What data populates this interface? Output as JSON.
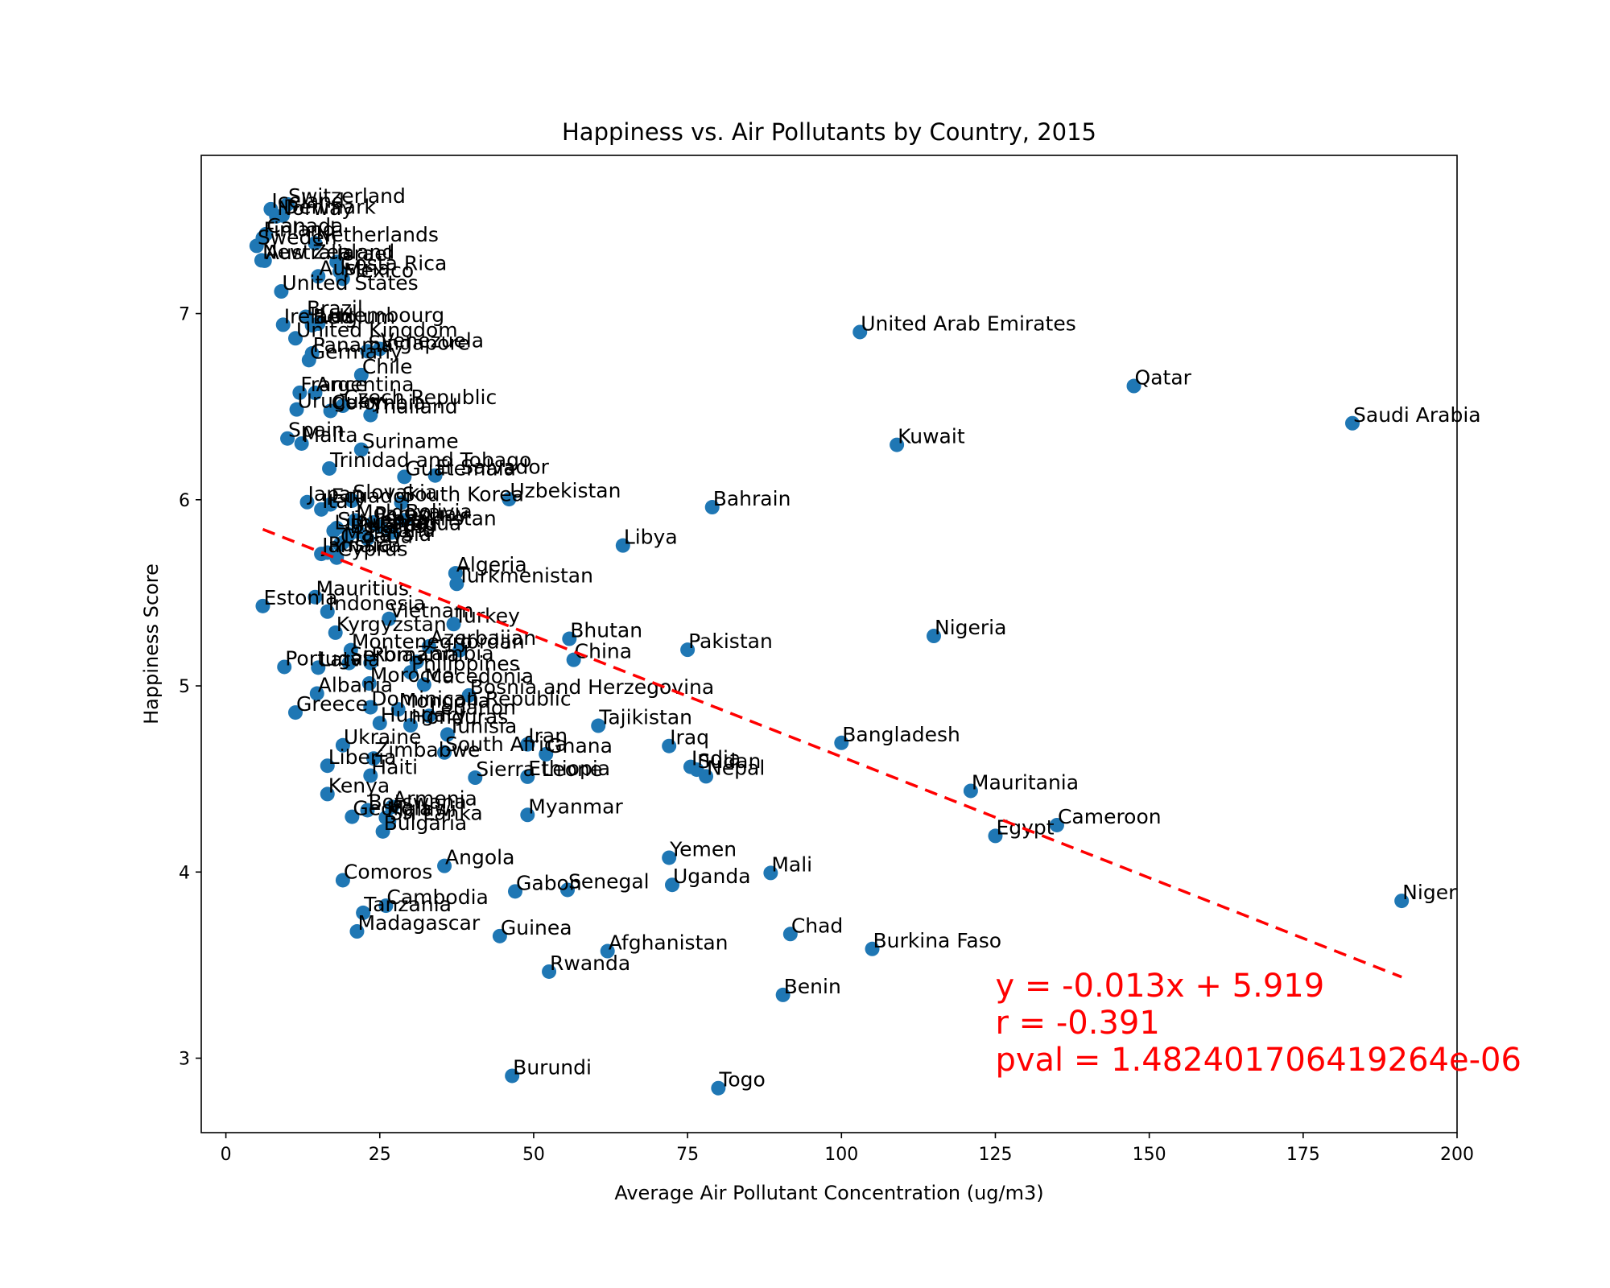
{
  "chart_data": {
    "type": "scatter",
    "title": "Happiness vs. Air Pollutants by Country, 2015",
    "xlabel": "Average Air Pollutant Concentration (ug/m3)",
    "ylabel": "Happiness Score",
    "xlim": [
      -4,
      200
    ],
    "ylim": [
      2.6,
      7.85
    ],
    "xticks": [
      "0",
      "25",
      "50",
      "75",
      "100",
      "125",
      "150",
      "175",
      "200"
    ],
    "yticks": [
      "3",
      "4",
      "5",
      "6",
      "7"
    ],
    "point_color": "#1f77b4",
    "line_color": "#ff0000",
    "regression": {
      "slope": -0.013,
      "intercept": 5.919,
      "x_range": [
        6,
        191
      ]
    },
    "annotation": [
      "y = -0.013x + 5.919",
      "r = -0.391",
      "pval = 1.482401706419264e-06"
    ],
    "points": [
      {
        "label": "Switzerland",
        "x": 10,
        "y": 7.587
      },
      {
        "label": "Iceland",
        "x": 7.3,
        "y": 7.561
      },
      {
        "label": "Denmark",
        "x": 9.2,
        "y": 7.527
      },
      {
        "label": "Norway",
        "x": 8.2,
        "y": 7.522
      },
      {
        "label": "Canada",
        "x": 6.5,
        "y": 7.427
      },
      {
        "label": "Finland",
        "x": 6,
        "y": 7.406
      },
      {
        "label": "Netherlands",
        "x": 14.5,
        "y": 7.378
      },
      {
        "label": "Sweden",
        "x": 5,
        "y": 7.364
      },
      {
        "label": "New Zealand",
        "x": 5.8,
        "y": 7.286
      },
      {
        "label": "Australia",
        "x": 6.3,
        "y": 7.284
      },
      {
        "label": "Israel",
        "x": 18,
        "y": 7.278
      },
      {
        "label": "Costa Rica",
        "x": 18.5,
        "y": 7.226
      },
      {
        "label": "Austria",
        "x": 15,
        "y": 7.2
      },
      {
        "label": "Mexico",
        "x": 19,
        "y": 7.187
      },
      {
        "label": "United States",
        "x": 9,
        "y": 7.119
      },
      {
        "label": "Brazil",
        "x": 13,
        "y": 6.983
      },
      {
        "label": "Luxembourg",
        "x": 15,
        "y": 6.946
      },
      {
        "label": "Ireland",
        "x": 9.3,
        "y": 6.94
      },
      {
        "label": "Belgium",
        "x": 14,
        "y": 6.937
      },
      {
        "label": "United Arab Emirates",
        "x": 103,
        "y": 6.901
      },
      {
        "label": "United Kingdom",
        "x": 11.3,
        "y": 6.867
      },
      {
        "label": "Venezuela",
        "x": 25,
        "y": 6.81
      },
      {
        "label": "Singapore",
        "x": 23,
        "y": 6.798
      },
      {
        "label": "Panama",
        "x": 14,
        "y": 6.786
      },
      {
        "label": "Germany",
        "x": 13.5,
        "y": 6.75
      },
      {
        "label": "Chile",
        "x": 22,
        "y": 6.67
      },
      {
        "label": "Qatar",
        "x": 147.5,
        "y": 6.611
      },
      {
        "label": "France",
        "x": 12,
        "y": 6.575
      },
      {
        "label": "Argentina",
        "x": 14.5,
        "y": 6.574
      },
      {
        "label": "Czech Republic",
        "x": 19,
        "y": 6.505
      },
      {
        "label": "Uruguay",
        "x": 11.5,
        "y": 6.485
      },
      {
        "label": "Colombia",
        "x": 17,
        "y": 6.477
      },
      {
        "label": "Thailand",
        "x": 23.5,
        "y": 6.455
      },
      {
        "label": "Saudi Arabia",
        "x": 183,
        "y": 6.411
      },
      {
        "label": "Spain",
        "x": 10,
        "y": 6.329
      },
      {
        "label": "Malta",
        "x": 12.3,
        "y": 6.302
      },
      {
        "label": "Kuwait",
        "x": 109,
        "y": 6.295
      },
      {
        "label": "Suriname",
        "x": 22,
        "y": 6.269
      },
      {
        "label": "Trinidad and Tobago",
        "x": 16.8,
        "y": 6.168
      },
      {
        "label": "El Salvador",
        "x": 34,
        "y": 6.13
      },
      {
        "label": "Guatemala",
        "x": 29,
        "y": 6.123
      },
      {
        "label": "Uzbekistan",
        "x": 46,
        "y": 6.003
      },
      {
        "label": "Slovakia",
        "x": 20.5,
        "y": 5.995
      },
      {
        "label": "Japan",
        "x": 13.2,
        "y": 5.987
      },
      {
        "label": "South Korea",
        "x": 28.5,
        "y": 5.984
      },
      {
        "label": "Ecuador",
        "x": 17,
        "y": 5.975
      },
      {
        "label": "Bahrain",
        "x": 79,
        "y": 5.96
      },
      {
        "label": "Italy",
        "x": 15.5,
        "y": 5.948
      },
      {
        "label": "Bolivia",
        "x": 29,
        "y": 5.89
      },
      {
        "label": "Moldova",
        "x": 21,
        "y": 5.889
      },
      {
        "label": "Paraguay",
        "x": 24,
        "y": 5.878
      },
      {
        "label": "Kazakhstan",
        "x": 25,
        "y": 5.855
      },
      {
        "label": "Slovenia",
        "x": 18,
        "y": 5.848
      },
      {
        "label": "Lithuania",
        "x": 17.5,
        "y": 5.833
      },
      {
        "label": "Nicaragua",
        "x": 21.5,
        "y": 5.828
      },
      {
        "label": "Peru",
        "x": 27,
        "y": 5.824
      },
      {
        "label": "Belarus",
        "x": 20,
        "y": 5.813
      },
      {
        "label": "Poland",
        "x": 23,
        "y": 5.791
      },
      {
        "label": "Malaysia",
        "x": 19,
        "y": 5.77
      },
      {
        "label": "Croatia",
        "x": 18.5,
        "y": 5.759
      },
      {
        "label": "Libya",
        "x": 64.5,
        "y": 5.754
      },
      {
        "label": "Russia",
        "x": 16.5,
        "y": 5.716
      },
      {
        "label": "Jamaica",
        "x": 15.5,
        "y": 5.709
      },
      {
        "label": "Cyprus",
        "x": 18,
        "y": 5.689
      },
      {
        "label": "Algeria",
        "x": 37.3,
        "y": 5.605
      },
      {
        "label": "Turkmenistan",
        "x": 37.5,
        "y": 5.548
      },
      {
        "label": "Mauritius",
        "x": 14.5,
        "y": 5.477
      },
      {
        "label": "Estonia",
        "x": 6,
        "y": 5.429
      },
      {
        "label": "Indonesia",
        "x": 16.5,
        "y": 5.399
      },
      {
        "label": "Vietnam",
        "x": 26.5,
        "y": 5.36
      },
      {
        "label": "Turkey",
        "x": 37,
        "y": 5.332
      },
      {
        "label": "Kyrgyzstan",
        "x": 17.8,
        "y": 5.286
      },
      {
        "label": "Nigeria",
        "x": 115,
        "y": 5.268
      },
      {
        "label": "Bhutan",
        "x": 55.8,
        "y": 5.253
      },
      {
        "label": "Azerbaijan",
        "x": 33,
        "y": 5.212
      },
      {
        "label": "Pakistan",
        "x": 75,
        "y": 5.194
      },
      {
        "label": "Jordan",
        "x": 38,
        "y": 5.192
      },
      {
        "label": "Montenegro",
        "x": 20.3,
        "y": 5.192
      },
      {
        "label": "China",
        "x": 56.5,
        "y": 5.14
      },
      {
        "label": "Zambia",
        "x": 31,
        "y": 5.129
      },
      {
        "label": "Romania",
        "x": 23.5,
        "y": 5.124
      },
      {
        "label": "Serbia",
        "x": 20,
        "y": 5.123
      },
      {
        "label": "Portugal",
        "x": 9.5,
        "y": 5.102
      },
      {
        "label": "Latvia",
        "x": 15,
        "y": 5.098
      },
      {
        "label": "Philippines",
        "x": 30,
        "y": 5.073
      },
      {
        "label": "Morocco",
        "x": 23.3,
        "y": 5.013
      },
      {
        "label": "Macedonia",
        "x": 32.2,
        "y": 5.007
      },
      {
        "label": "Albania",
        "x": 14.8,
        "y": 4.959
      },
      {
        "label": "Bosnia and Herzegovina",
        "x": 39.5,
        "y": 4.949
      },
      {
        "label": "Dominican Republic",
        "x": 23.5,
        "y": 4.885
      },
      {
        "label": "Mongolia",
        "x": 28,
        "y": 4.874
      },
      {
        "label": "Greece",
        "x": 11.3,
        "y": 4.857
      },
      {
        "label": "Lebanon",
        "x": 33,
        "y": 4.839
      },
      {
        "label": "Hungary",
        "x": 25,
        "y": 4.8
      },
      {
        "label": "Honduras",
        "x": 30,
        "y": 4.788
      },
      {
        "label": "Tajikistan",
        "x": 60.5,
        "y": 4.786
      },
      {
        "label": "Tunisia",
        "x": 36,
        "y": 4.739
      },
      {
        "label": "Bangladesh",
        "x": 100,
        "y": 4.694
      },
      {
        "label": "Iran",
        "x": 49,
        "y": 4.686
      },
      {
        "label": "Ukraine",
        "x": 19,
        "y": 4.681
      },
      {
        "label": "Iraq",
        "x": 72,
        "y": 4.677
      },
      {
        "label": "South Africa",
        "x": 35.5,
        "y": 4.642
      },
      {
        "label": "Ghana",
        "x": 52,
        "y": 4.633
      },
      {
        "label": "Zimbabwe",
        "x": 24,
        "y": 4.61
      },
      {
        "label": "Liberia",
        "x": 16.5,
        "y": 4.571
      },
      {
        "label": "India",
        "x": 75.5,
        "y": 4.565
      },
      {
        "label": "Sudan",
        "x": 76.5,
        "y": 4.55
      },
      {
        "label": "Haiti",
        "x": 23.5,
        "y": 4.518
      },
      {
        "label": "Nepal",
        "x": 78,
        "y": 4.514
      },
      {
        "label": "Ethiopia",
        "x": 49,
        "y": 4.512
      },
      {
        "label": "Sierra Leone",
        "x": 40.5,
        "y": 4.507
      },
      {
        "label": "Mauritania",
        "x": 121,
        "y": 4.436
      },
      {
        "label": "Kenya",
        "x": 16.5,
        "y": 4.419
      },
      {
        "label": "Armenia",
        "x": 27,
        "y": 4.35
      },
      {
        "label": "Botswana",
        "x": 23,
        "y": 4.332
      },
      {
        "label": "Myanmar",
        "x": 49,
        "y": 4.307
      },
      {
        "label": "Georgia",
        "x": 20.5,
        "y": 4.297
      },
      {
        "label": "Malawi",
        "x": 26,
        "y": 4.292
      },
      {
        "label": "Sri Lanka",
        "x": 26.5,
        "y": 4.271
      },
      {
        "label": "Cameroon",
        "x": 135,
        "y": 4.252
      },
      {
        "label": "Bulgaria",
        "x": 25.5,
        "y": 4.218
      },
      {
        "label": "Egypt",
        "x": 125,
        "y": 4.194
      },
      {
        "label": "Yemen",
        "x": 72,
        "y": 4.077
      },
      {
        "label": "Angola",
        "x": 35.5,
        "y": 4.033
      },
      {
        "label": "Mali",
        "x": 88.5,
        "y": 3.995
      },
      {
        "label": "Comoros",
        "x": 19,
        "y": 3.956
      },
      {
        "label": "Uganda",
        "x": 72.5,
        "y": 3.931
      },
      {
        "label": "Senegal",
        "x": 55.5,
        "y": 3.904
      },
      {
        "label": "Gabon",
        "x": 47,
        "y": 3.896
      },
      {
        "label": "Niger",
        "x": 191,
        "y": 3.845
      },
      {
        "label": "Cambodia",
        "x": 26,
        "y": 3.819
      },
      {
        "label": "Tanzania",
        "x": 22.3,
        "y": 3.781
      },
      {
        "label": "Madagascar",
        "x": 21.3,
        "y": 3.681
      },
      {
        "label": "Chad",
        "x": 91.7,
        "y": 3.667
      },
      {
        "label": "Guinea",
        "x": 44.5,
        "y": 3.656
      },
      {
        "label": "Burkina Faso",
        "x": 105,
        "y": 3.587
      },
      {
        "label": "Afghanistan",
        "x": 62,
        "y": 3.575
      },
      {
        "label": "Rwanda",
        "x": 52.5,
        "y": 3.465
      },
      {
        "label": "Benin",
        "x": 90.5,
        "y": 3.34
      },
      {
        "label": "Burundi",
        "x": 46.5,
        "y": 2.905
      },
      {
        "label": "Togo",
        "x": 80,
        "y": 2.839
      }
    ]
  }
}
